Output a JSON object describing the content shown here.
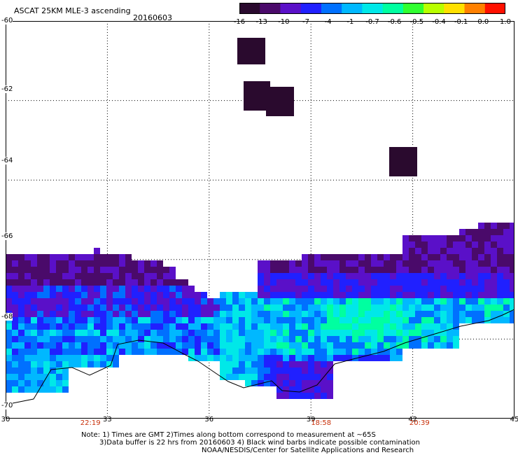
{
  "header": {
    "title": "ASCAT 25KM MLE-3 ascending",
    "date": "20160603"
  },
  "colorbar": {
    "labels": [
      "-16",
      "-13",
      "-10",
      "-7",
      "-4",
      "-1",
      "-0.7",
      "-0.6",
      "-0.5",
      "-0.4",
      "-0.1",
      "0.0",
      "1.0"
    ],
    "colors": [
      "#2a0a2e",
      "#4a0a6a",
      "#5a10c8",
      "#2020ff",
      "#0070ff",
      "#00b8ff",
      "#00e8e8",
      "#00ffa0",
      "#30ff30",
      "#b8ff00",
      "#ffe000",
      "#ff8000",
      "#ff1000"
    ]
  },
  "map": {
    "lat_labels": [
      "-60",
      "-62",
      "-64",
      "-66",
      "-68",
      "-70"
    ],
    "lon_labels": [
      "30",
      "33",
      "36",
      "39",
      "42",
      "45"
    ],
    "time_labels": [
      {
        "text": "22:19",
        "lon": 32.5
      },
      {
        "text": "18:58",
        "lon": 39.3
      },
      {
        "text": "20:39",
        "lon": 42.2
      }
    ]
  },
  "notes": {
    "line1": "Note: 1) Times are GMT 2)Times along bottom correspond to measurement at ~65S",
    "line2": "3)Data buffer is 22 hrs from 20160603 4) Black wind barbs indicate possible contamination",
    "line3": "NOAA/NESDIS/Center for Satellite Applications and Research"
  }
}
